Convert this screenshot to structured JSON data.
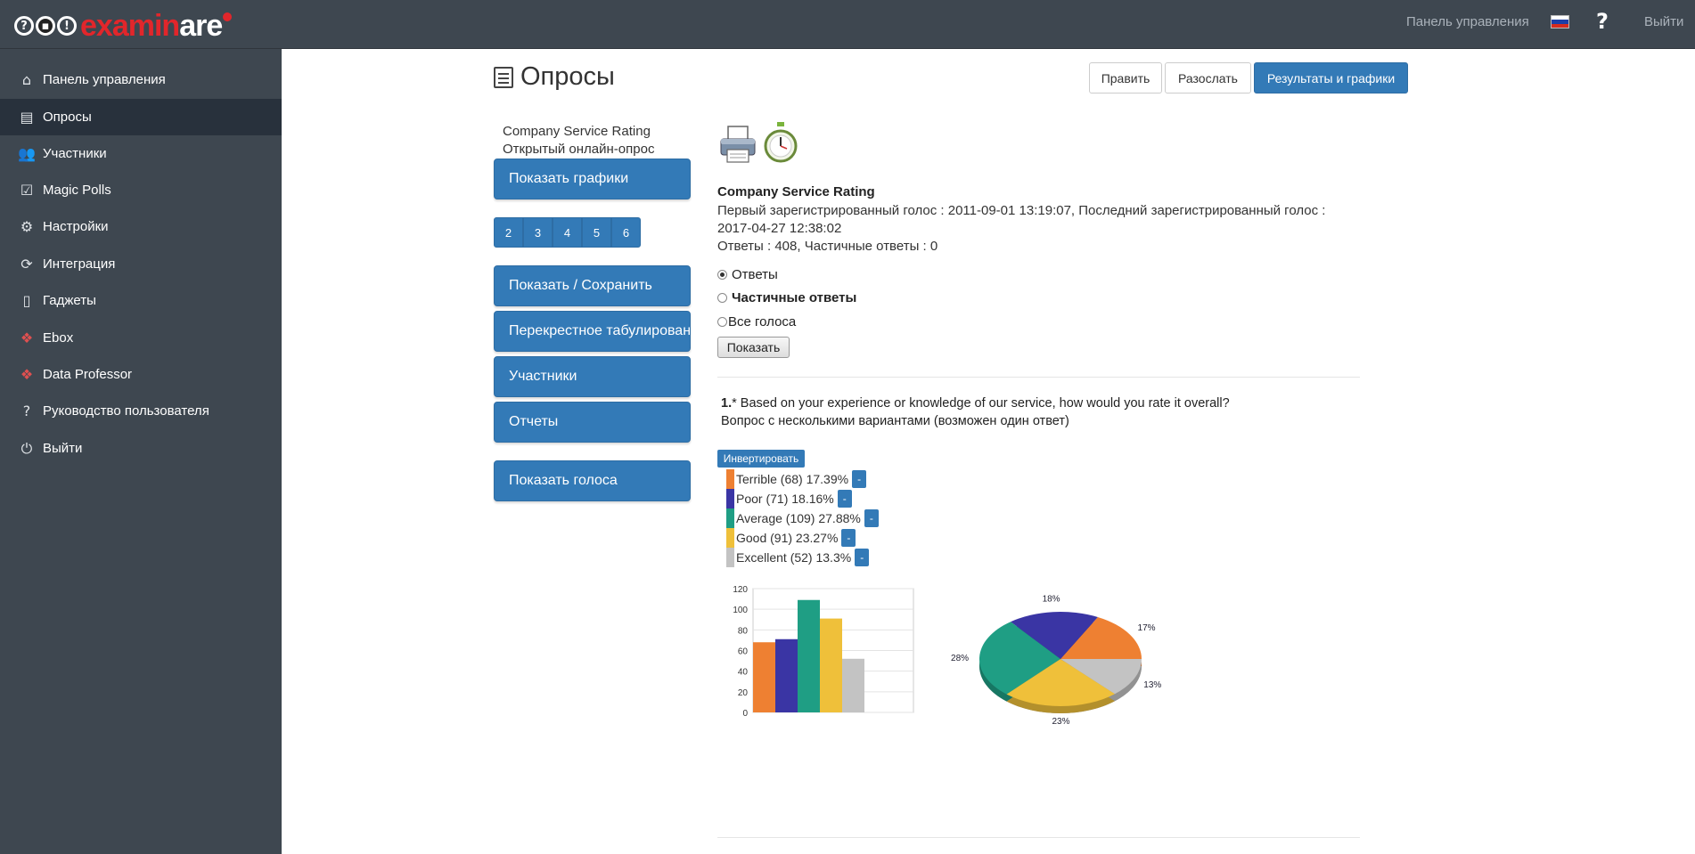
{
  "topbar": {
    "logo_text_red": "exami",
    "logo_text_white_n": "n",
    "logo_text_red2": "are",
    "links": {
      "dashboard": "Панель управления",
      "logout": "Выйти"
    },
    "help_symbol": "?",
    "flag_colors": [
      "#ffffff",
      "#1c3fa8",
      "#d52b1e"
    ]
  },
  "sidebar": {
    "items": [
      {
        "label": "Панель управления",
        "icon": "home-icon"
      },
      {
        "label": "Опросы",
        "icon": "surveys-icon",
        "active": true
      },
      {
        "label": "Участники",
        "icon": "users-icon"
      },
      {
        "label": "Magic Polls",
        "icon": "checkbox-icon"
      },
      {
        "label": "Настройки",
        "icon": "gears-icon"
      },
      {
        "label": "Интеграция",
        "icon": "refresh-icon"
      },
      {
        "label": "Гаджеты",
        "icon": "mobile-icon"
      },
      {
        "label": "Ebox",
        "icon": "ebox-icon"
      },
      {
        "label": "Data Professor",
        "icon": "data-professor-icon"
      },
      {
        "label": "Руководство пользователя",
        "icon": "question-icon"
      },
      {
        "label": "Выйти",
        "icon": "power-icon"
      }
    ]
  },
  "header": {
    "title": "Опросы",
    "buttons": {
      "edit": "Править",
      "send": "Разослать",
      "results": "Результаты и графики"
    }
  },
  "left_panel": {
    "survey_name": "Company Service Rating",
    "survey_type": "Открытый онлайн-опрос",
    "show_charts": "Показать графики",
    "pages": [
      "2",
      "3",
      "4",
      "5",
      "6"
    ],
    "show_save": "Показать / Сохранить",
    "crosstab": "Перекрестное табулирование",
    "participants": "Участники",
    "reports": "Отчеты",
    "show_votes": "Показать голоса"
  },
  "info": {
    "title": "Company Service Rating",
    "line1": "Первый зарегистрированный голос : 2011-09-01 13:19:07, Последний зарегистрированный голос :",
    "line2": "2017-04-27 12:38:02",
    "line3": "Ответы : 408, Частичные ответы : 0",
    "radios": [
      {
        "label": "Ответы",
        "checked": true,
        "bold": false
      },
      {
        "label": "Частичные ответы",
        "checked": false,
        "bold": true
      },
      {
        "label": "Все голоса",
        "checked": false,
        "bold": false
      }
    ],
    "show_button": "Показать"
  },
  "question": {
    "number": "1.",
    "required_mark": "*",
    "text": "Based on your experience or knowledge of our service, how would you rate it overall?",
    "type": "Вопрос с несколькими вариантами (возможен один ответ)",
    "invert": "Инвертировать",
    "legend": [
      {
        "label": "Terrible (68) 17.39%",
        "color": "#ee8032"
      },
      {
        "label": "Poor (71) 18.16%",
        "color": "#3a35a4"
      },
      {
        "label": "Average (109) 27.88%",
        "color": "#1f9e84"
      },
      {
        "label": "Good (91) 23.27%",
        "color": "#efc03a"
      },
      {
        "label": "Excellent (52) 13.3%",
        "color": "#c3c3c3"
      }
    ],
    "minus": "-"
  },
  "chart_data": [
    {
      "type": "bar",
      "categories": [
        "Terrible",
        "Poor",
        "Average",
        "Good",
        "Excellent"
      ],
      "values": [
        68,
        71,
        109,
        91,
        52
      ],
      "colors": [
        "#ee8032",
        "#3a35a4",
        "#1f9e84",
        "#efc03a",
        "#c3c3c3"
      ],
      "yticks": [
        "0",
        "20",
        "40",
        "60",
        "80",
        "100",
        "120"
      ],
      "ylim": [
        0,
        120
      ],
      "grid": true
    },
    {
      "type": "pie",
      "categories": [
        "Terrible",
        "Poor",
        "Average",
        "Good",
        "Excellent"
      ],
      "values": [
        17.39,
        18.16,
        27.88,
        23.27,
        13.3
      ],
      "labels": [
        "17%",
        "18%",
        "28%",
        "23%",
        "13%"
      ],
      "colors": [
        "#ee8032",
        "#3a35a4",
        "#1f9e84",
        "#efc03a",
        "#c3c3c3"
      ]
    }
  ]
}
